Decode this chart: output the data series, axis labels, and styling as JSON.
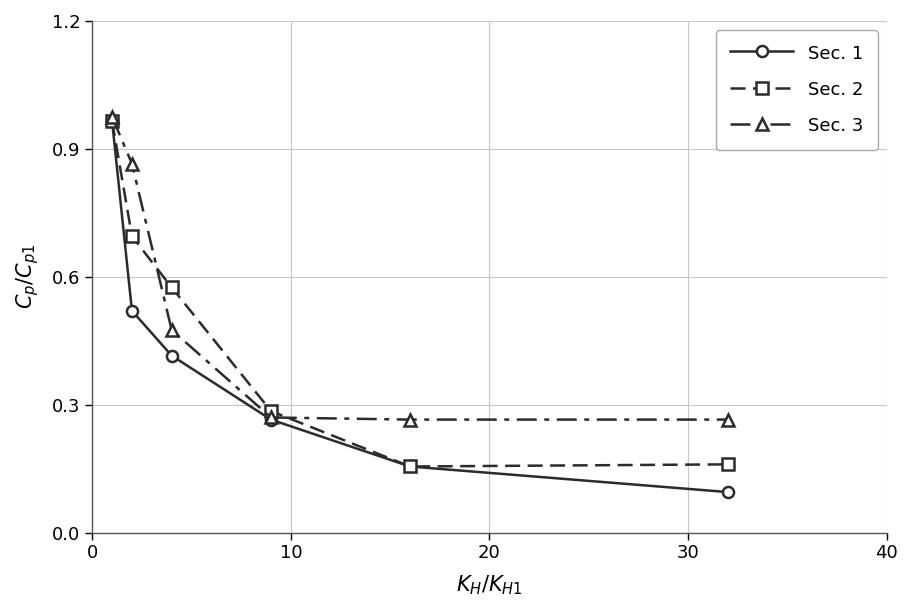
{
  "sec1_x": [
    1,
    2,
    4,
    9,
    16,
    32
  ],
  "sec1_y": [
    0.965,
    0.52,
    0.415,
    0.265,
    0.155,
    0.095
  ],
  "sec2_x": [
    1,
    2,
    4,
    9,
    16,
    32
  ],
  "sec2_y": [
    0.965,
    0.695,
    0.575,
    0.285,
    0.155,
    0.16
  ],
  "sec3_x": [
    1,
    2,
    4,
    9,
    16,
    32
  ],
  "sec3_y": [
    0.975,
    0.865,
    0.475,
    0.27,
    0.265,
    0.265
  ],
  "xlabel": "$K_H/K_{H1}$",
  "ylabel": "$C_p/C_{p1}$",
  "xlim": [
    0,
    40
  ],
  "ylim": [
    0.0,
    1.2
  ],
  "xticks": [
    0,
    10,
    20,
    30,
    40
  ],
  "yticks": [
    0.0,
    0.3,
    0.6,
    0.9,
    1.2
  ],
  "legend_labels": [
    "Sec. 1",
    "Sec. 2",
    "Sec. 3"
  ],
  "line_color": "#2b2b2b",
  "bg_color": "#ffffff",
  "grid_color": "#c8c8c8"
}
